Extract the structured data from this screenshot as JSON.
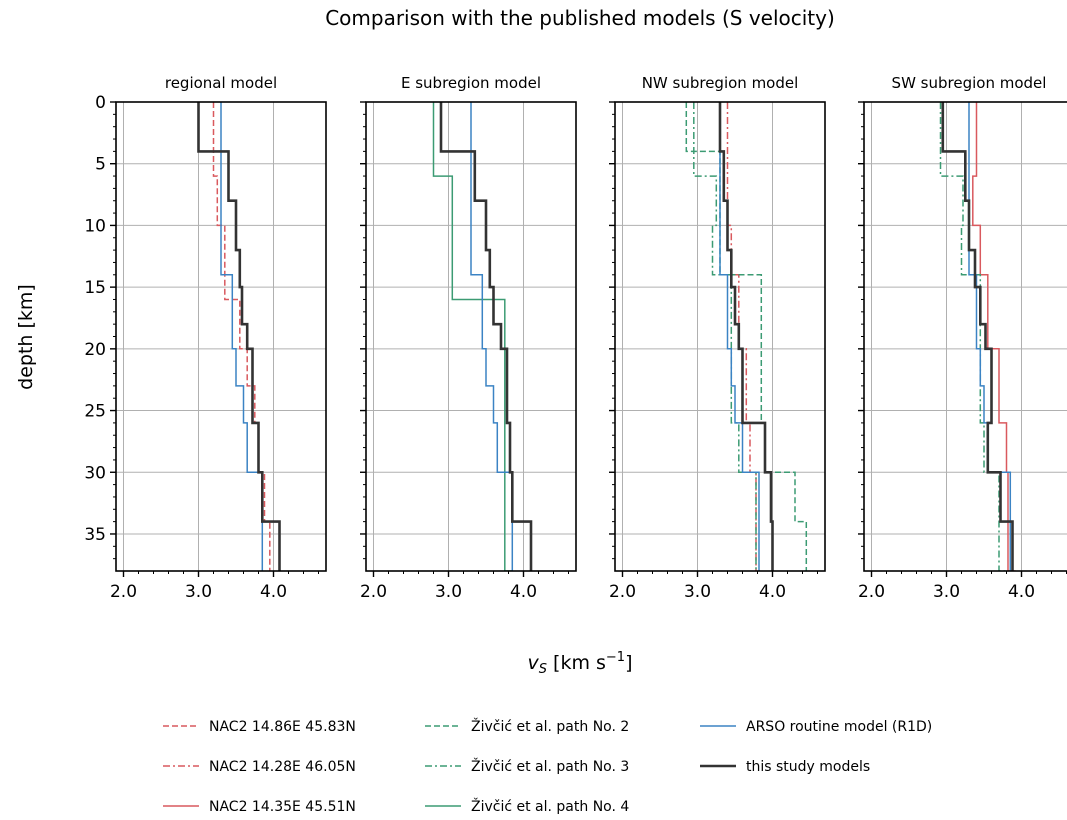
{
  "title": "Comparison with the published models (S velocity)",
  "ylabel": "depth [km]",
  "xlabel": "v_S [km s^-1]",
  "xlabel_parts": {
    "var": "v",
    "sub": "S",
    "unit": " [km s",
    "exp": "−1",
    "close": "]"
  },
  "colors": {
    "nac": "#d9595e",
    "ziv": "#3c9b73",
    "arso": "#3b83c4",
    "this": "#333333",
    "grid": "#b0b0b0"
  },
  "chart_data": {
    "type": "line",
    "xlim": [
      1.9,
      4.7
    ],
    "ylim": [
      38,
      0
    ],
    "y_inverted": true,
    "grid": true,
    "legend_position": "bottom",
    "x_ticks": [
      2.0,
      3.0,
      4.0
    ],
    "x_tick_labels": [
      "2.0",
      "3.0",
      "4.0"
    ],
    "y_ticks": [
      0,
      5,
      10,
      15,
      20,
      25,
      30,
      35
    ],
    "y_tick_labels": [
      "0",
      "5",
      "10",
      "15",
      "20",
      "25",
      "30",
      "35"
    ],
    "legend": [
      {
        "key": "nac1",
        "label": "NAC2 14.86E 45.83N",
        "color": "nac",
        "dash": "dashed"
      },
      {
        "key": "nac2",
        "label": "NAC2 14.28E 46.05N",
        "color": "nac",
        "dash": "dashdot"
      },
      {
        "key": "nac3",
        "label": "NAC2 14.35E 45.51N",
        "color": "nac",
        "dash": "solid"
      },
      {
        "key": "ziv2",
        "label": "Živčić et al. path No. 2",
        "color": "ziv",
        "dash": "dashed"
      },
      {
        "key": "ziv3",
        "label": "Živčić et al. path No. 3",
        "color": "ziv",
        "dash": "dashdot"
      },
      {
        "key": "ziv4",
        "label": "Živčić et al. path No. 4",
        "color": "ziv",
        "dash": "solid"
      },
      {
        "key": "arso",
        "label": "ARSO routine model (R1D)",
        "color": "arso",
        "dash": "solid"
      },
      {
        "key": "this",
        "label": "this study models",
        "color": "this",
        "dash": "solid"
      }
    ],
    "panels": [
      {
        "title": "regional model",
        "series": [
          {
            "key": "nac1",
            "depth": [
              0,
              6,
              10,
              16,
              20,
              23,
              26,
              30,
              34,
              38
            ],
            "vs": [
              3.2,
              3.25,
              3.35,
              3.55,
              3.65,
              3.75,
              3.8,
              3.88,
              3.95,
              3.95
            ]
          },
          {
            "key": "arso",
            "depth": [
              0,
              4,
              8,
              14,
              20,
              23,
              26,
              30,
              38
            ],
            "vs": [
              3.3,
              3.3,
              3.3,
              3.45,
              3.5,
              3.6,
              3.65,
              3.85,
              3.85
            ]
          },
          {
            "key": "this",
            "depth": [
              0,
              4,
              8,
              12,
              15,
              18,
              20,
              26,
              30,
              34,
              38
            ],
            "vs": [
              3.0,
              3.4,
              3.5,
              3.55,
              3.58,
              3.65,
              3.72,
              3.8,
              3.85,
              4.08,
              4.08
            ]
          }
        ]
      },
      {
        "title": "E subregion model",
        "series": [
          {
            "key": "ziv4",
            "depth": [
              0,
              6,
              16,
              38
            ],
            "vs": [
              2.8,
              3.05,
              3.75,
              3.85
            ]
          },
          {
            "key": "arso",
            "depth": [
              0,
              4,
              8,
              14,
              20,
              23,
              26,
              30,
              38
            ],
            "vs": [
              3.3,
              3.3,
              3.3,
              3.45,
              3.5,
              3.6,
              3.65,
              3.85,
              3.85
            ]
          },
          {
            "key": "this",
            "depth": [
              0,
              4,
              8,
              12,
              15,
              18,
              20,
              26,
              30,
              34,
              38
            ],
            "vs": [
              2.9,
              3.35,
              3.5,
              3.55,
              3.6,
              3.7,
              3.78,
              3.82,
              3.85,
              4.1,
              4.1
            ]
          }
        ]
      },
      {
        "title": "NW subregion model",
        "series": [
          {
            "key": "nac2",
            "depth": [
              0,
              6,
              10,
              14,
              20,
              26,
              30,
              38
            ],
            "vs": [
              3.4,
              3.4,
              3.45,
              3.55,
              3.65,
              3.7,
              3.78,
              3.78
            ]
          },
          {
            "key": "ziv2",
            "depth": [
              0,
              4,
              14,
              26,
              30,
              34,
              38
            ],
            "vs": [
              2.85,
              3.3,
              3.85,
              3.9,
              4.3,
              4.45,
              4.45
            ]
          },
          {
            "key": "ziv3",
            "depth": [
              0,
              6,
              10,
              14,
              26,
              30,
              38
            ],
            "vs": [
              2.95,
              3.25,
              3.2,
              3.45,
              3.55,
              3.78,
              3.78
            ]
          },
          {
            "key": "arso",
            "depth": [
              0,
              4,
              8,
              14,
              20,
              23,
              26,
              30,
              38
            ],
            "vs": [
              3.3,
              3.3,
              3.3,
              3.4,
              3.45,
              3.5,
              3.6,
              3.82,
              3.82
            ]
          },
          {
            "key": "this",
            "depth": [
              0,
              4,
              8,
              12,
              15,
              18,
              20,
              26,
              30,
              34,
              38
            ],
            "vs": [
              3.3,
              3.35,
              3.4,
              3.45,
              3.5,
              3.55,
              3.6,
              3.9,
              3.98,
              4.0,
              4.0
            ]
          }
        ]
      },
      {
        "title": "SW subregion model",
        "series": [
          {
            "key": "nac3",
            "depth": [
              0,
              6,
              10,
              14,
              20,
              26,
              30,
              38
            ],
            "vs": [
              3.4,
              3.35,
              3.45,
              3.55,
              3.7,
              3.8,
              3.82,
              3.92
            ]
          },
          {
            "key": "ziv3",
            "depth": [
              0,
              6,
              10,
              14,
              26,
              30,
              38
            ],
            "vs": [
              2.92,
              3.22,
              3.2,
              3.45,
              3.5,
              3.7,
              3.8
            ]
          },
          {
            "key": "arso",
            "depth": [
              0,
              4,
              8,
              14,
              20,
              23,
              26,
              30,
              38
            ],
            "vs": [
              3.3,
              3.3,
              3.3,
              3.4,
              3.45,
              3.5,
              3.55,
              3.85,
              3.85
            ]
          },
          {
            "key": "this",
            "depth": [
              0,
              4,
              8,
              12,
              15,
              18,
              20,
              26,
              30,
              34,
              38
            ],
            "vs": [
              2.95,
              3.25,
              3.3,
              3.38,
              3.45,
              3.52,
              3.6,
              3.55,
              3.72,
              3.88,
              3.88
            ]
          }
        ]
      }
    ]
  }
}
